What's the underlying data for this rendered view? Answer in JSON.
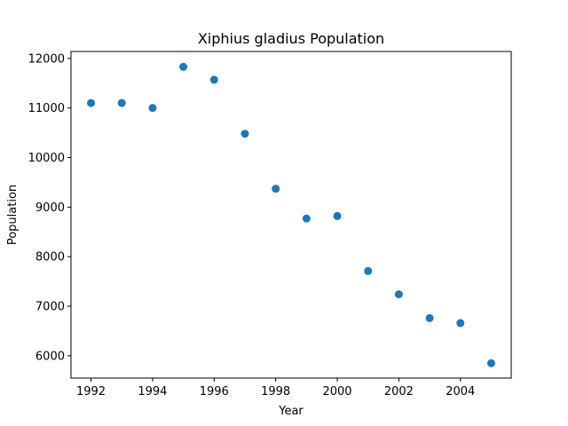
{
  "chart_data": {
    "type": "scatter",
    "title": "Xiphius gladius Population",
    "xlabel": "Year",
    "ylabel": "Population",
    "xlim": [
      1991.35,
      2005.65
    ],
    "ylim": [
      5550,
      12140
    ],
    "xticks": [
      1992,
      1994,
      1996,
      1998,
      2000,
      2002,
      2004
    ],
    "yticks": [
      6000,
      7000,
      8000,
      9000,
      10000,
      11000,
      12000
    ],
    "grid": false,
    "marker_color": "#1f77b4",
    "x": [
      1992,
      1993,
      1994,
      1995,
      1996,
      1997,
      1998,
      1999,
      2000,
      2001,
      2002,
      2003,
      2004,
      2005
    ],
    "y": [
      11100,
      11100,
      11000,
      11830,
      11570,
      10480,
      9370,
      8770,
      8820,
      7710,
      7240,
      6760,
      6660,
      5850
    ]
  }
}
